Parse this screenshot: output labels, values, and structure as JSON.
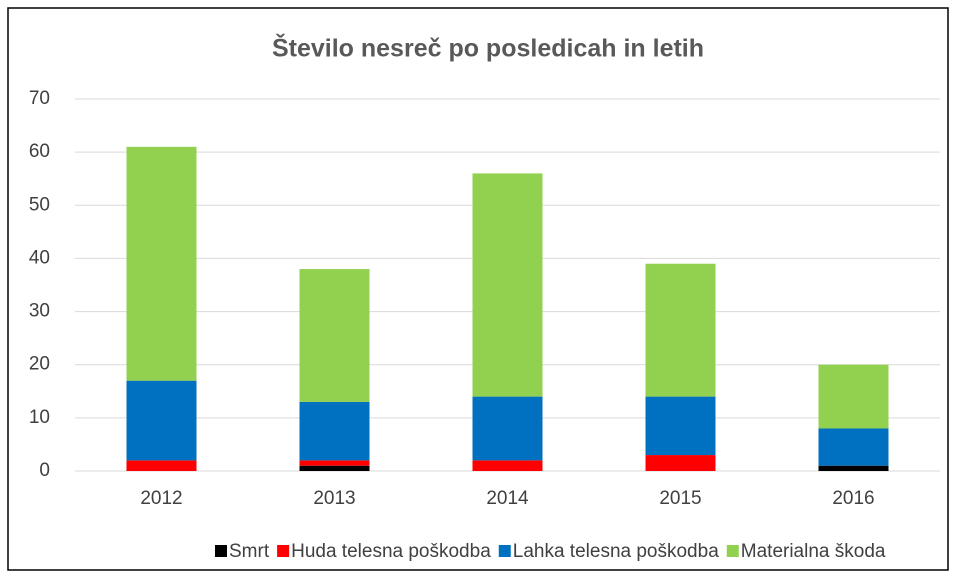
{
  "chart_data": {
    "type": "stacked_bar",
    "title": "Število nesreč po posledicah in letih",
    "categories": [
      "2012",
      "2013",
      "2014",
      "2015",
      "2016"
    ],
    "series": [
      {
        "name": "Smrt",
        "color": "#000000",
        "values": [
          0,
          1,
          0,
          0,
          1
        ]
      },
      {
        "name": "Huda telesna poškodba",
        "color": "#ff0000",
        "values": [
          2,
          1,
          2,
          3,
          0
        ]
      },
      {
        "name": "Lahka telesna poškodba",
        "color": "#0070c0",
        "values": [
          15,
          11,
          12,
          11,
          7
        ]
      },
      {
        "name": "Materialna škoda",
        "color": "#92d050",
        "values": [
          44,
          25,
          42,
          25,
          12
        ]
      }
    ],
    "ylim": [
      0,
      70
    ],
    "yticks": [
      0,
      10,
      20,
      30,
      40,
      50,
      60,
      70
    ],
    "grid": true,
    "legend": "bottom"
  }
}
